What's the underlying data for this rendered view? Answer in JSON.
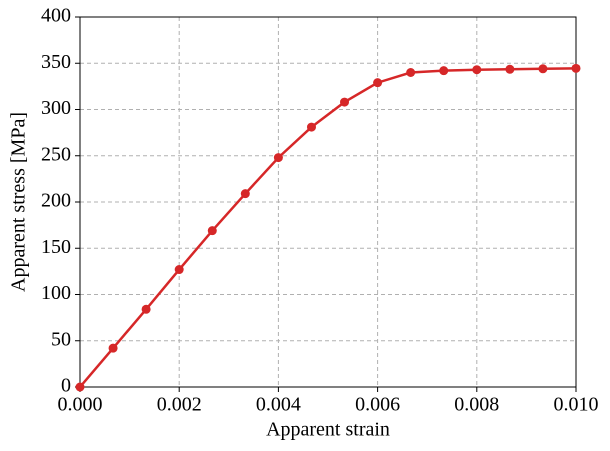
{
  "chart_data": {
    "type": "line",
    "xlabel": "Apparent strain",
    "ylabel": "Apparent stress [MPa]",
    "x": [
      0,
      0.000667,
      0.001333,
      0.002,
      0.002667,
      0.003333,
      0.004,
      0.004667,
      0.005333,
      0.006,
      0.006667,
      0.007333,
      0.008,
      0.008667,
      0.009333,
      0.01
    ],
    "series": [
      {
        "color": "#d62728",
        "values": [
          0,
          42,
          84,
          127,
          169,
          209,
          248,
          281,
          308,
          329,
          340,
          342,
          343,
          343.5,
          344,
          344.5
        ]
      }
    ],
    "xlim": [
      0,
      0.01
    ],
    "ylim": [
      0,
      400
    ],
    "xticks": [
      {
        "value": 0,
        "label": "0.000"
      },
      {
        "value": 0.002,
        "label": "0.002"
      },
      {
        "value": 0.004,
        "label": "0.004"
      },
      {
        "value": 0.006,
        "label": "0.006"
      },
      {
        "value": 0.008,
        "label": "0.008"
      },
      {
        "value": 0.01,
        "label": "0.010"
      }
    ],
    "yticks": [
      0,
      50,
      100,
      150,
      200,
      250,
      300,
      350,
      400
    ],
    "grid": true
  }
}
